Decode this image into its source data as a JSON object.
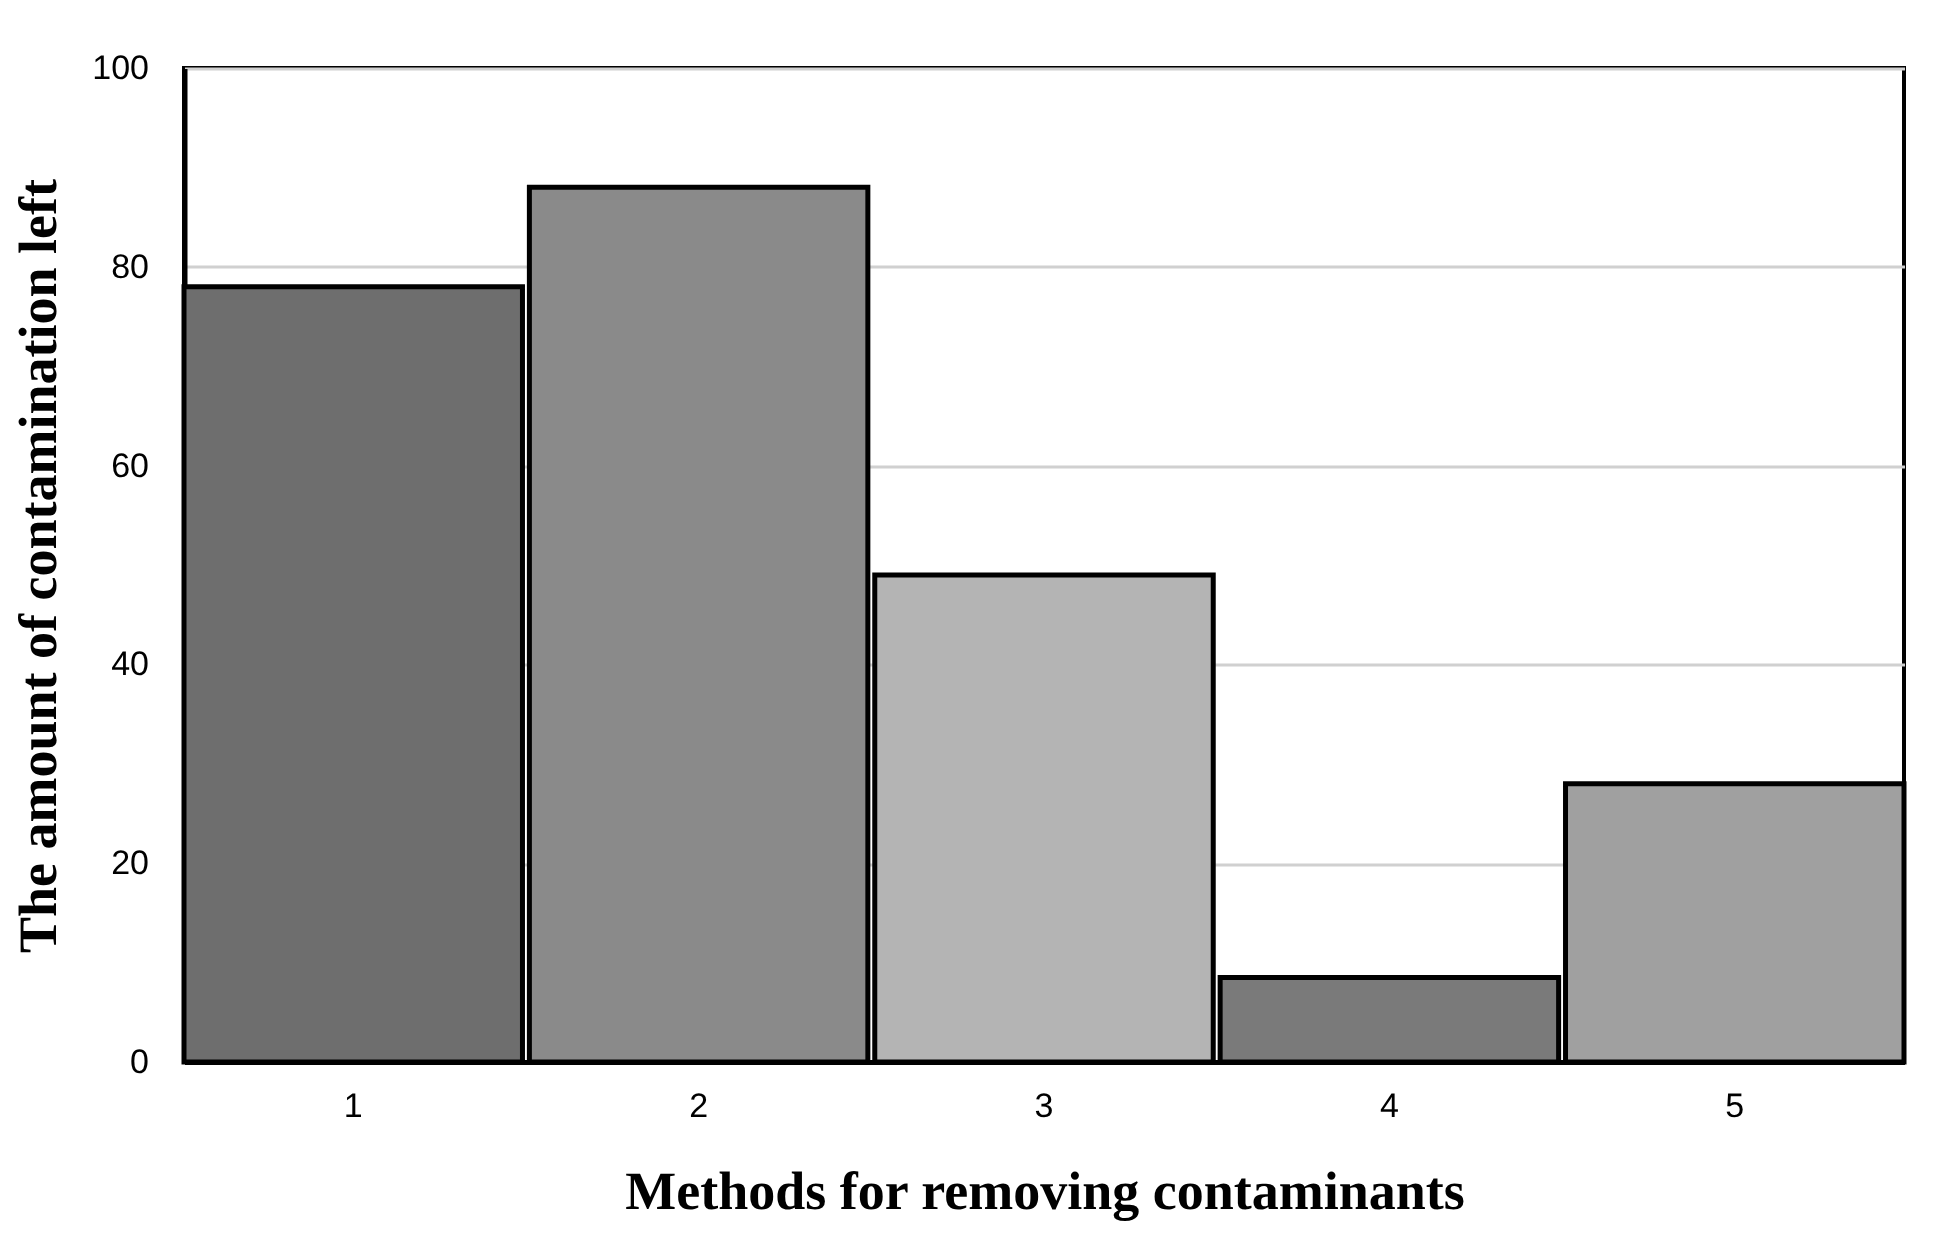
{
  "chart_data": {
    "type": "bar",
    "xlabel": "Methods for removing contaminants",
    "ylabel": "The amount of contamination left",
    "categories": [
      "1",
      "2",
      "3",
      "4",
      "5"
    ],
    "values": [
      78,
      88,
      49,
      8.5,
      28
    ],
    "colors": [
      "#6e6e6e",
      "#8a8a8a",
      "#b4b4b4",
      "#7a7a7a",
      "#a0a0a0"
    ],
    "ylim": [
      0,
      100
    ],
    "yticks": [
      0,
      20,
      40,
      60,
      80,
      100
    ],
    "grid": "y"
  }
}
